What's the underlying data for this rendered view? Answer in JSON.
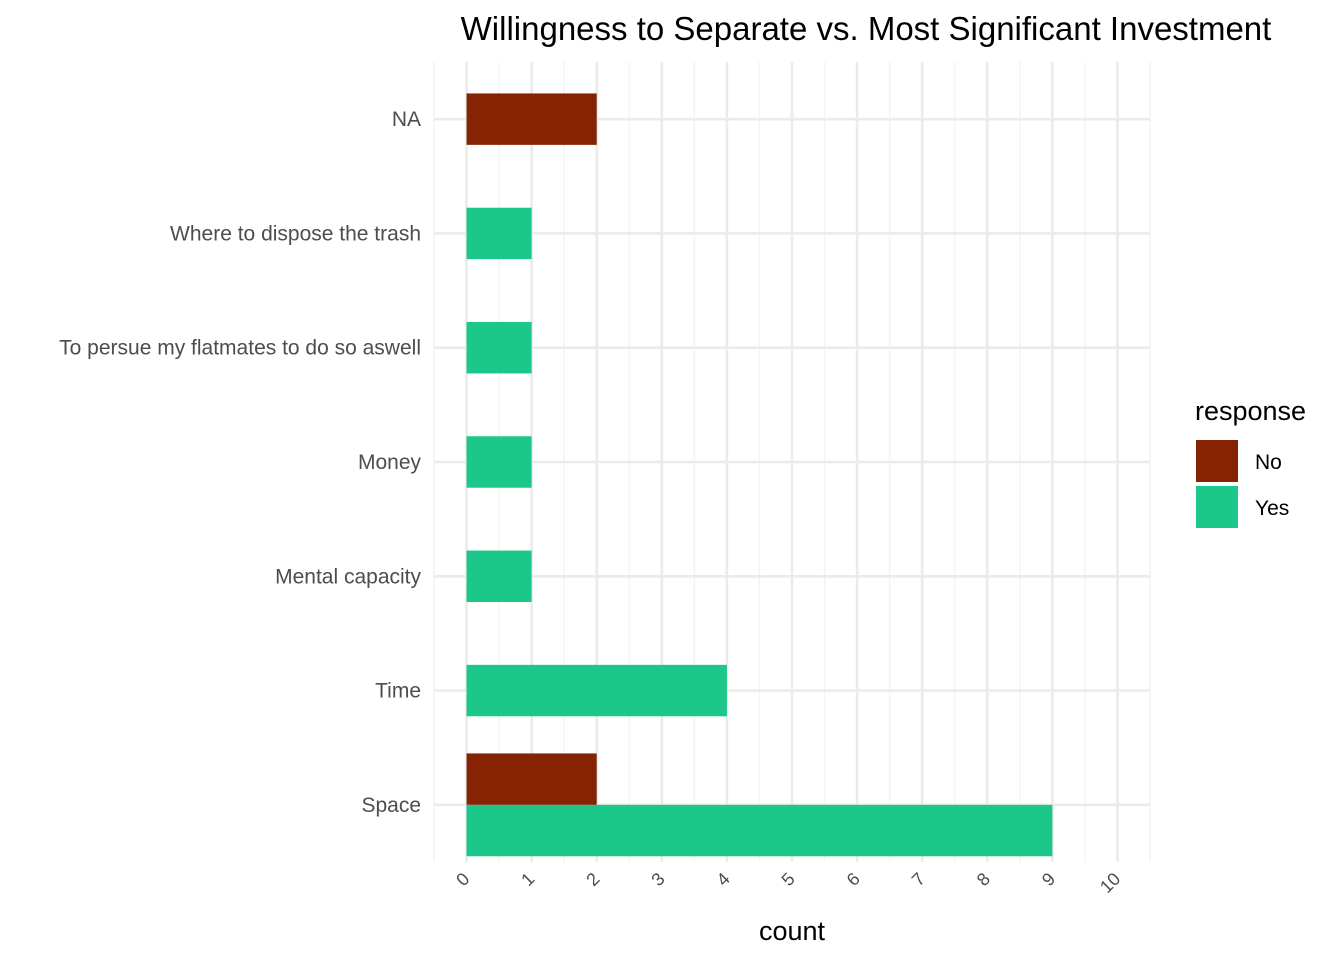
{
  "chart_data": {
    "type": "bar",
    "orientation": "horizontal",
    "position": "dodge",
    "title": "Willingness to Separate vs. Most Significant Investment",
    "xlabel": "count",
    "ylabel": "",
    "xlim": [
      -0.5,
      10.5
    ],
    "x_ticks": [
      "0",
      "1",
      "2",
      "3",
      "4",
      "5",
      "6",
      "7",
      "8",
      "9",
      "10"
    ],
    "categories": [
      "NA",
      "Where to dispose the trash",
      "To persue my flatmates to do so aswell",
      "Money",
      "Mental capacity",
      "Time",
      "Space"
    ],
    "series": [
      {
        "name": "No",
        "color": "#862302",
        "values": [
          2,
          null,
          null,
          null,
          null,
          null,
          2
        ]
      },
      {
        "name": "Yes",
        "color": "#1bc789",
        "values": [
          null,
          1,
          1,
          1,
          1,
          4,
          9
        ]
      }
    ],
    "grid": true,
    "legend": {
      "title": "response",
      "position": "right"
    }
  }
}
